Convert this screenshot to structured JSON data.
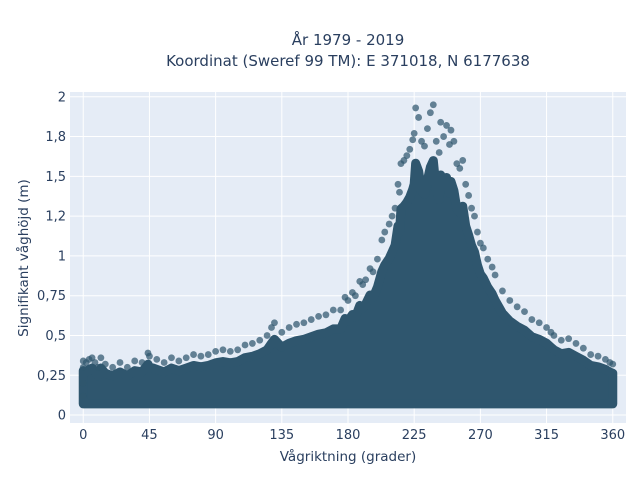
{
  "chart_data": {
    "type": "scatter",
    "title": "År 1979 - 2019",
    "subtitle": "Koordinat (Sweref 99 TM): E 371018, N 6177638",
    "xlabel": "Vågriktning (grader)",
    "ylabel": "Signifikant våghöjd (m)",
    "xlim": [
      -9,
      369
    ],
    "ylim": [
      -0.05,
      2.03
    ],
    "x_ticks": [
      {
        "value": 0,
        "label": "0"
      },
      {
        "value": 45,
        "label": "45"
      },
      {
        "value": 90,
        "label": "90"
      },
      {
        "value": 135,
        "label": "135"
      },
      {
        "value": 180,
        "label": "180"
      },
      {
        "value": 225,
        "label": "225"
      },
      {
        "value": 270,
        "label": "270"
      },
      {
        "value": 315,
        "label": "315"
      },
      {
        "value": 360,
        "label": "360"
      }
    ],
    "y_ticks": [
      {
        "value": 0,
        "label": "0"
      },
      {
        "value": 0.25,
        "label": "0,25"
      },
      {
        "value": 0.5,
        "label": "0,5"
      },
      {
        "value": 0.75,
        "label": "0,75"
      },
      {
        "value": 1,
        "label": "1"
      },
      {
        "value": 1.25,
        "label": "1,2"
      },
      {
        "value": 1.5,
        "label": "1,5"
      },
      {
        "value": 1.75,
        "label": "1,8"
      },
      {
        "value": 2,
        "label": "2"
      }
    ],
    "grid": true,
    "legend": "none",
    "marker_color": "#2f566e",
    "plot_bg": "#e5ecf6",
    "grid_color": "#ffffff",
    "series": [
      {
        "points": [
          [
            0,
            0.12
          ],
          [
            0,
            0.2
          ],
          [
            0,
            0.3
          ],
          [
            0,
            0.34
          ],
          [
            2,
            0.33
          ],
          [
            4,
            0.35
          ],
          [
            6,
            0.36
          ],
          [
            8,
            0.33
          ],
          [
            10,
            0.3
          ],
          [
            12,
            0.36
          ],
          [
            15,
            0.32
          ],
          [
            20,
            0.3
          ],
          [
            25,
            0.33
          ],
          [
            30,
            0.3
          ],
          [
            35,
            0.34
          ],
          [
            40,
            0.33
          ],
          [
            44,
            0.39
          ],
          [
            45,
            0.37
          ],
          [
            50,
            0.35
          ],
          [
            55,
            0.33
          ],
          [
            60,
            0.36
          ],
          [
            65,
            0.34
          ],
          [
            70,
            0.36
          ],
          [
            75,
            0.38
          ],
          [
            80,
            0.37
          ],
          [
            85,
            0.38
          ],
          [
            90,
            0.4
          ],
          [
            95,
            0.41
          ],
          [
            100,
            0.4
          ],
          [
            105,
            0.41
          ],
          [
            110,
            0.44
          ],
          [
            115,
            0.45
          ],
          [
            120,
            0.47
          ],
          [
            125,
            0.5
          ],
          [
            128,
            0.55
          ],
          [
            130,
            0.58
          ],
          [
            135,
            0.52
          ],
          [
            140,
            0.55
          ],
          [
            145,
            0.57
          ],
          [
            150,
            0.58
          ],
          [
            155,
            0.6
          ],
          [
            160,
            0.62
          ],
          [
            165,
            0.63
          ],
          [
            170,
            0.66
          ],
          [
            175,
            0.66
          ],
          [
            178,
            0.74
          ],
          [
            180,
            0.72
          ],
          [
            183,
            0.77
          ],
          [
            185,
            0.75
          ],
          [
            188,
            0.84
          ],
          [
            190,
            0.82
          ],
          [
            192,
            0.85
          ],
          [
            195,
            0.92
          ],
          [
            197,
            0.9
          ],
          [
            200,
            0.98
          ],
          [
            203,
            1.1
          ],
          [
            205,
            1.15
          ],
          [
            208,
            1.2
          ],
          [
            210,
            1.25
          ],
          [
            212,
            1.3
          ],
          [
            214,
            1.45
          ],
          [
            215,
            1.4
          ],
          [
            216,
            1.58
          ],
          [
            218,
            1.6
          ],
          [
            220,
            1.63
          ],
          [
            222,
            1.67
          ],
          [
            224,
            1.73
          ],
          [
            225,
            1.77
          ],
          [
            226,
            1.93
          ],
          [
            228,
            1.87
          ],
          [
            230,
            1.72
          ],
          [
            232,
            1.69
          ],
          [
            234,
            1.8
          ],
          [
            236,
            1.9
          ],
          [
            238,
            1.95
          ],
          [
            240,
            1.72
          ],
          [
            242,
            1.65
          ],
          [
            243,
            1.84
          ],
          [
            245,
            1.75
          ],
          [
            247,
            1.82
          ],
          [
            249,
            1.7
          ],
          [
            250,
            1.79
          ],
          [
            252,
            1.72
          ],
          [
            254,
            1.58
          ],
          [
            256,
            1.55
          ],
          [
            258,
            1.6
          ],
          [
            260,
            1.45
          ],
          [
            262,
            1.38
          ],
          [
            264,
            1.3
          ],
          [
            266,
            1.25
          ],
          [
            268,
            1.15
          ],
          [
            270,
            1.08
          ],
          [
            272,
            1.05
          ],
          [
            275,
            0.98
          ],
          [
            278,
            0.93
          ],
          [
            280,
            0.88
          ],
          [
            285,
            0.78
          ],
          [
            290,
            0.72
          ],
          [
            295,
            0.68
          ],
          [
            300,
            0.65
          ],
          [
            305,
            0.6
          ],
          [
            310,
            0.58
          ],
          [
            315,
            0.55
          ],
          [
            318,
            0.52
          ],
          [
            320,
            0.5
          ],
          [
            325,
            0.47
          ],
          [
            330,
            0.48
          ],
          [
            335,
            0.45
          ],
          [
            340,
            0.42
          ],
          [
            345,
            0.38
          ],
          [
            350,
            0.37
          ],
          [
            355,
            0.35
          ],
          [
            358,
            0.33
          ],
          [
            360,
            0.32
          ]
        ]
      }
    ]
  }
}
